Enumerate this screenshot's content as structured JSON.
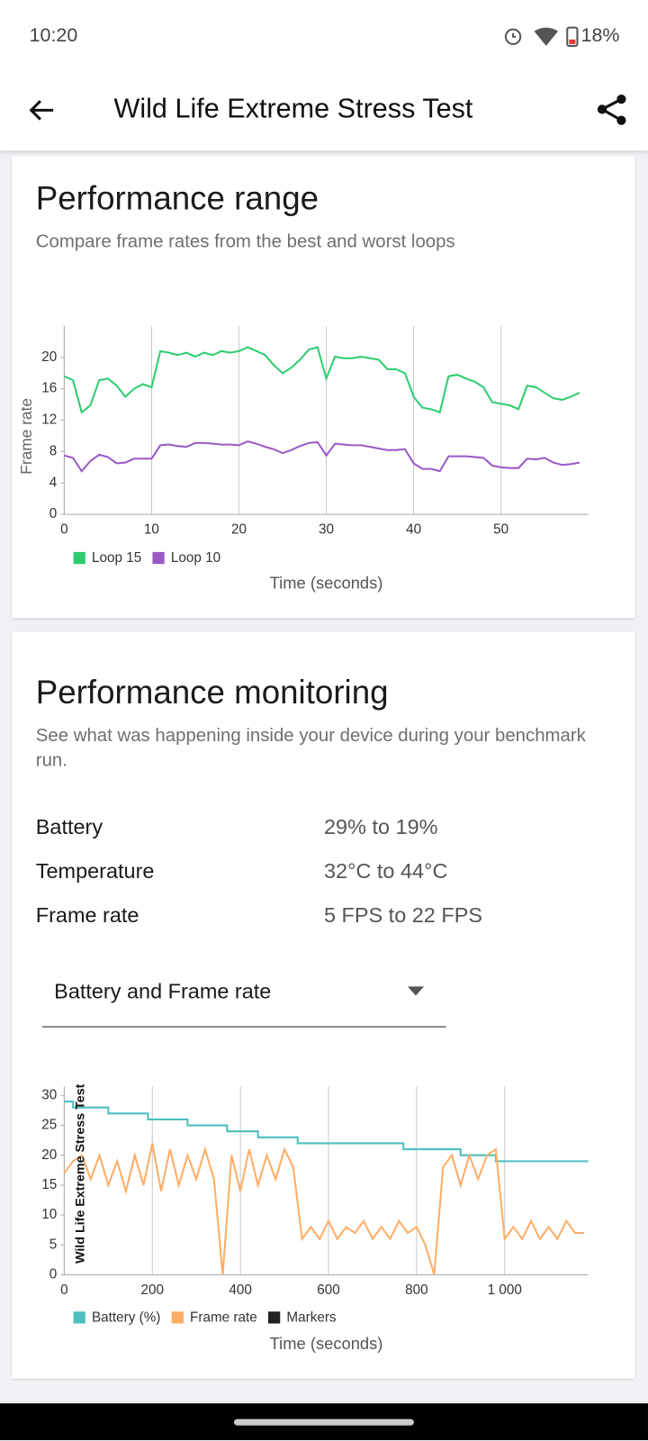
{
  "status_bar": {
    "time": "10:20",
    "battery": "18%"
  },
  "app_bar": {
    "title": "Wild Life Extreme Stress Test"
  },
  "range_card": {
    "title": "Performance range",
    "subtitle": "Compare frame rates from the best and worst loops"
  },
  "monitor_card": {
    "title": "Performance monitoring",
    "subtitle": "See what was happening inside your device during your benchmark run.",
    "stats": [
      {
        "label": "Battery",
        "value": "29% to 19%"
      },
      {
        "label": "Temperature",
        "value": "32°C to 44°C"
      },
      {
        "label": "Frame rate",
        "value": "5 FPS to 22 FPS"
      }
    ],
    "dropdown": "Battery and Frame rate"
  },
  "chart_data": [
    {
      "type": "line",
      "y_label": "Frame rate",
      "x_label": "Time (seconds)",
      "x": [
        0,
        1,
        2,
        3,
        4,
        5,
        6,
        7,
        8,
        9,
        10,
        11,
        12,
        13,
        14,
        15,
        16,
        17,
        18,
        19,
        20,
        21,
        22,
        23,
        24,
        25,
        26,
        27,
        28,
        29,
        30,
        31,
        32,
        33,
        34,
        35,
        36,
        37,
        38,
        39,
        40,
        41,
        42,
        43,
        44,
        45,
        46,
        47,
        48,
        49,
        50,
        51,
        52,
        53,
        54,
        55,
        56,
        57,
        58,
        59
      ],
      "series": [
        {
          "name": "Loop 15",
          "color": "#2ecc71",
          "values": [
            17.6,
            17.1,
            13,
            13.9,
            17.1,
            17.3,
            16.4,
            15,
            16,
            16.6,
            16.2,
            20.8,
            20.6,
            20.3,
            20.6,
            20.1,
            20.6,
            20.3,
            20.8,
            20.6,
            20.8,
            21.3,
            20.8,
            20.3,
            19,
            18,
            18.7,
            19.7,
            21,
            21.3,
            17.3,
            20.1,
            19.9,
            19.9,
            20.1,
            19.9,
            19.7,
            18.5,
            18.5,
            18,
            15,
            13.6,
            13.4,
            13,
            17.6,
            17.8,
            17.3,
            16.9,
            16.2,
            14.3,
            14.1,
            13.9,
            13.4,
            16.4,
            16.2,
            15.5,
            14.8,
            14.6,
            15,
            15.5
          ]
        },
        {
          "name": "Loop 10",
          "color": "#9b59c6",
          "values": [
            7.5,
            7.2,
            5.5,
            6.8,
            7.6,
            7.3,
            6.5,
            6.6,
            7.1,
            7.1,
            7.1,
            8.8,
            8.9,
            8.7,
            8.6,
            9.1,
            9.1,
            9,
            8.9,
            8.9,
            8.8,
            9.3,
            9,
            8.6,
            8.3,
            7.8,
            8.2,
            8.7,
            9.1,
            9.2,
            7.5,
            9,
            8.9,
            8.8,
            8.8,
            8.6,
            8.4,
            8.2,
            8.2,
            8.3,
            6.5,
            5.8,
            5.8,
            5.5,
            7.4,
            7.4,
            7.4,
            7.3,
            7.2,
            6.2,
            6,
            5.9,
            5.9,
            7.1,
            7,
            7.2,
            6.6,
            6.3,
            6.4,
            6.6
          ]
        }
      ],
      "xlim": [
        0,
        60
      ],
      "ylim": [
        0,
        24
      ],
      "xticks": [
        0,
        10,
        20,
        30,
        40,
        50
      ],
      "yticks": [
        0,
        4,
        8,
        12,
        16,
        20
      ],
      "grid": "x"
    },
    {
      "type": "line",
      "y_label": "Wild Life Extreme Stress Test",
      "x_label": "Time (seconds)",
      "series": [
        {
          "name": "Battery (%)",
          "color": "#4dbfbf",
          "x": [
            0,
            20,
            20,
            100,
            100,
            190,
            190,
            280,
            280,
            370,
            370,
            440,
            440,
            530,
            530,
            770,
            770,
            900,
            900,
            980,
            980,
            1190
          ],
          "values": [
            29,
            29,
            28,
            28,
            27,
            27,
            26,
            26,
            25,
            25,
            24,
            24,
            23,
            23,
            22,
            22,
            21,
            21,
            20,
            20,
            19,
            19
          ]
        },
        {
          "name": "Frame rate",
          "color": "#ffad66",
          "x": [
            0,
            20,
            40,
            60,
            80,
            100,
            120,
            140,
            160,
            180,
            200,
            220,
            240,
            260,
            280,
            300,
            320,
            340,
            360,
            380,
            400,
            420,
            440,
            460,
            480,
            500,
            520,
            540,
            560,
            580,
            600,
            620,
            640,
            660,
            680,
            700,
            720,
            740,
            760,
            780,
            800,
            820,
            840,
            860,
            880,
            900,
            920,
            940,
            960,
            980,
            1000,
            1020,
            1040,
            1060,
            1080,
            1100,
            1120,
            1140,
            1160,
            1180
          ],
          "values": [
            17,
            19,
            20,
            16,
            20,
            15,
            19,
            14,
            20,
            15,
            22,
            14,
            21,
            15,
            20,
            16,
            21,
            16,
            0,
            20,
            14,
            21,
            15,
            20,
            16,
            21,
            18,
            6,
            8,
            6,
            9,
            6,
            8,
            7,
            9,
            6,
            8,
            6,
            9,
            7,
            8,
            5,
            0,
            18,
            20,
            15,
            20,
            16,
            20,
            21,
            6,
            8,
            6,
            9,
            6,
            8,
            6,
            9,
            7,
            7
          ]
        },
        {
          "name": "Markers",
          "color": "#222222",
          "x": [],
          "values": []
        }
      ],
      "xlim": [
        0,
        1190
      ],
      "ylim": [
        0,
        31.5
      ],
      "xticks": [
        0,
        200,
        400,
        600,
        800,
        {
          "value": 1000,
          "label": "1 000"
        }
      ],
      "yticks": [
        0,
        5,
        10,
        15,
        20,
        25,
        30
      ],
      "grid": "x"
    }
  ]
}
